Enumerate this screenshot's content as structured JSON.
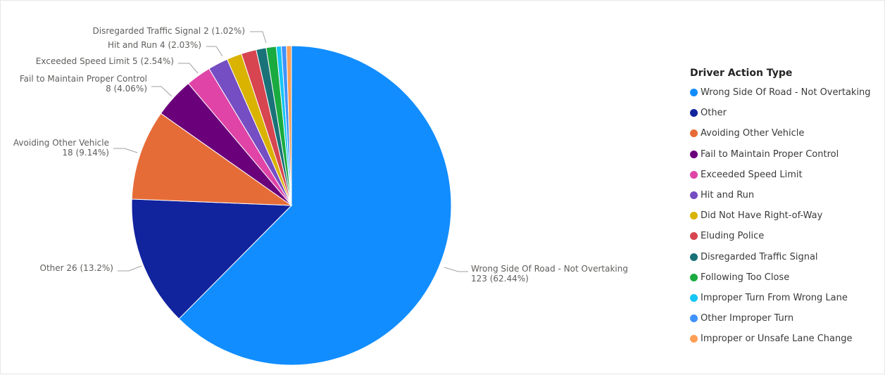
{
  "chart_data": {
    "type": "pie",
    "legend": {
      "title": "Driver Action Type",
      "position": "right"
    },
    "slices": [
      {
        "name": "Wrong Side Of Road - Not Overtaking",
        "value": 123,
        "percent": "62.44%",
        "color": "#118DFF",
        "label": [
          "Wrong Side Of Road - Not Overtaking",
          "123 (62.44%)"
        ]
      },
      {
        "name": "Other",
        "value": 26,
        "percent": "13.2%",
        "color": "#12239E",
        "label": [
          "Other 26 (13.2%)"
        ]
      },
      {
        "name": "Avoiding Other Vehicle",
        "value": 18,
        "percent": "9.14%",
        "color": "#E66C37",
        "label": [
          "Avoiding Other Vehicle",
          "18 (9.14%)"
        ]
      },
      {
        "name": "Fail to Maintain Proper Control",
        "value": 8,
        "percent": "4.06%",
        "color": "#6B007B",
        "label": [
          "Fail to Maintain Proper Control",
          "8 (4.06%)"
        ]
      },
      {
        "name": "Exceeded Speed Limit",
        "value": 5,
        "percent": "2.54%",
        "color": "#E044A7",
        "label": [
          "Exceeded Speed Limit 5 (2.54%)"
        ]
      },
      {
        "name": "Hit and Run",
        "value": 4,
        "percent": "2.03%",
        "color": "#744EC2",
        "label": [
          "Hit and Run 4 (2.03%)"
        ]
      },
      {
        "name": "Did Not Have Right-of-Way",
        "value": 3,
        "color": "#D9B300"
      },
      {
        "name": "Eluding Police",
        "value": 3,
        "color": "#D64550"
      },
      {
        "name": "Disregarded Traffic Signal",
        "value": 2,
        "percent": "1.02%",
        "color": "#197278",
        "label": [
          "Disregarded Traffic Signal 2 (1.02%)"
        ]
      },
      {
        "name": "Following Too Close",
        "value": 2,
        "color": "#1AAB40"
      },
      {
        "name": "Improper Turn From Wrong Lane",
        "value": 1,
        "color": "#15C6F4"
      },
      {
        "name": "Other Improper Turn",
        "value": 1,
        "color": "#4092FF"
      },
      {
        "name": "Improper or Unsafe Lane Change",
        "value": 1,
        "color": "#FF9F57"
      }
    ]
  }
}
